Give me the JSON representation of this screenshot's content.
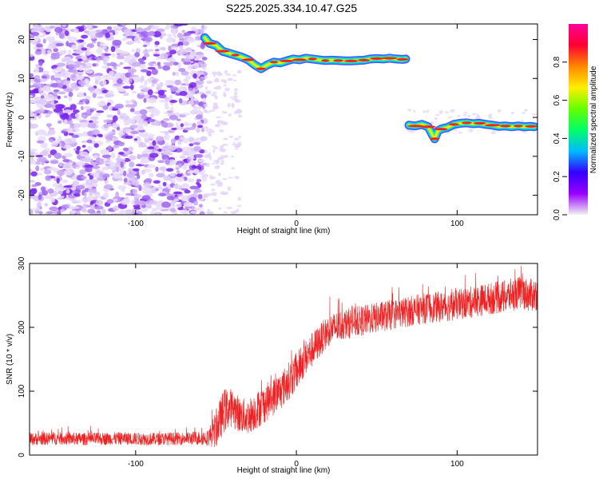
{
  "figure_title": "S225.2025.334.10.47.G25",
  "chart_data": [
    {
      "type": "heatmap",
      "name": "spectrogram",
      "xlabel": "Height of straight line (km)",
      "ylabel": "Frequency (Hz)",
      "xlim": [
        -166,
        150
      ],
      "ylim": [
        -25,
        24
      ],
      "xticks": [
        -100,
        0,
        100
      ],
      "xtick_labels": [
        "-100",
        "0",
        "100"
      ],
      "yticks": [
        -20,
        -10,
        0,
        10,
        20
      ],
      "ytick_labels": [
        "-20",
        "-10",
        "0",
        "10",
        "20"
      ],
      "noise_region_x": [
        -166,
        -57
      ],
      "transition_region_x": [
        -57,
        -35
      ],
      "carrier_track_segment_1": {
        "x": [
          -57,
          -54,
          -50,
          -46,
          -42,
          -38,
          -34,
          -30,
          -26,
          -22,
          -18,
          -14,
          -10,
          -6,
          -2,
          2,
          6,
          10,
          14,
          18,
          22,
          26,
          30,
          34,
          38,
          42,
          46,
          50,
          54,
          58,
          62,
          66,
          68
        ],
        "freq_hz": [
          20.5,
          19,
          18.5,
          17,
          16.5,
          16,
          15.5,
          14.8,
          13.5,
          12.5,
          13.5,
          14.2,
          14,
          14.5,
          15,
          14.8,
          15.2,
          15,
          14.8,
          14.6,
          14.7,
          14.6,
          14.5,
          14.5,
          14.6,
          14.7,
          15,
          15.1,
          15,
          15.2,
          15,
          14.9,
          15
        ]
      },
      "carrier_track_segment_2": {
        "x": [
          70,
          74,
          78,
          82,
          84,
          86,
          88,
          90,
          94,
          98,
          102,
          106,
          110,
          114,
          118,
          122,
          126,
          130,
          134,
          138,
          142,
          146,
          148
        ],
        "freq_hz": [
          -2,
          -2.2,
          -1.8,
          -2.4,
          -4,
          -5.5,
          -3.5,
          -3,
          -2.6,
          -1.8,
          -1.5,
          -1.4,
          -1.6,
          -1.5,
          -1.8,
          -2,
          -2.3,
          -2.2,
          -2.4,
          -2.2,
          -2.4,
          -2.3,
          -2.4
        ]
      },
      "colorbar": {
        "label": "Normalized spectral amplitude",
        "range": [
          0,
          1
        ],
        "ticks": [
          0,
          0.2,
          0.4,
          0.6,
          0.8
        ],
        "tick_labels": [
          "0.0",
          "0.2",
          "0.4",
          "0.6",
          "0.8"
        ],
        "colors": [
          "#f2f2f2",
          "#9900ff",
          "#3300ff",
          "#00bbff",
          "#00ff66",
          "#66ff00",
          "#ffee00",
          "#ff8800",
          "#ff0033",
          "#ff0099"
        ]
      }
    },
    {
      "type": "line",
      "name": "snr",
      "xlabel": "Height of straight line (km)",
      "ylabel": "SNR (10 * v/v)",
      "xlim": [
        -166,
        150
      ],
      "ylim": [
        0,
        300
      ],
      "xticks": [
        -100,
        0,
        100
      ],
      "xtick_labels": [
        "-100",
        "0",
        "100"
      ],
      "yticks": [
        0,
        100,
        200,
        300
      ],
      "ytick_labels": [
        "0",
        "100",
        "200",
        "300"
      ],
      "color": "#ee2222",
      "series": [
        {
          "name": "SNR",
          "x": [
            -166,
            -150,
            -130,
            -110,
            -90,
            -70,
            -55,
            -50,
            -45,
            -40,
            -35,
            -30,
            -25,
            -20,
            -15,
            -10,
            -5,
            0,
            5,
            10,
            15,
            20,
            25,
            30,
            40,
            50,
            60,
            70,
            80,
            90,
            100,
            110,
            120,
            130,
            140,
            145,
            150
          ],
          "y": [
            25,
            26,
            25,
            26,
            25,
            26,
            27,
            40,
            70,
            75,
            62,
            60,
            70,
            80,
            90,
            100,
            115,
            130,
            150,
            165,
            180,
            195,
            200,
            205,
            210,
            215,
            220,
            225,
            230,
            232,
            235,
            240,
            245,
            248,
            255,
            250,
            252
          ],
          "noise_amplitude": [
            10,
            10,
            10,
            10,
            10,
            10,
            12,
            30,
            35,
            30,
            28,
            28,
            30,
            30,
            30,
            30,
            30,
            30,
            28,
            28,
            26,
            25,
            25,
            24,
            24,
            24,
            24,
            24,
            24,
            24,
            24,
            25,
            25,
            26,
            26,
            26,
            26
          ]
        }
      ]
    }
  ]
}
